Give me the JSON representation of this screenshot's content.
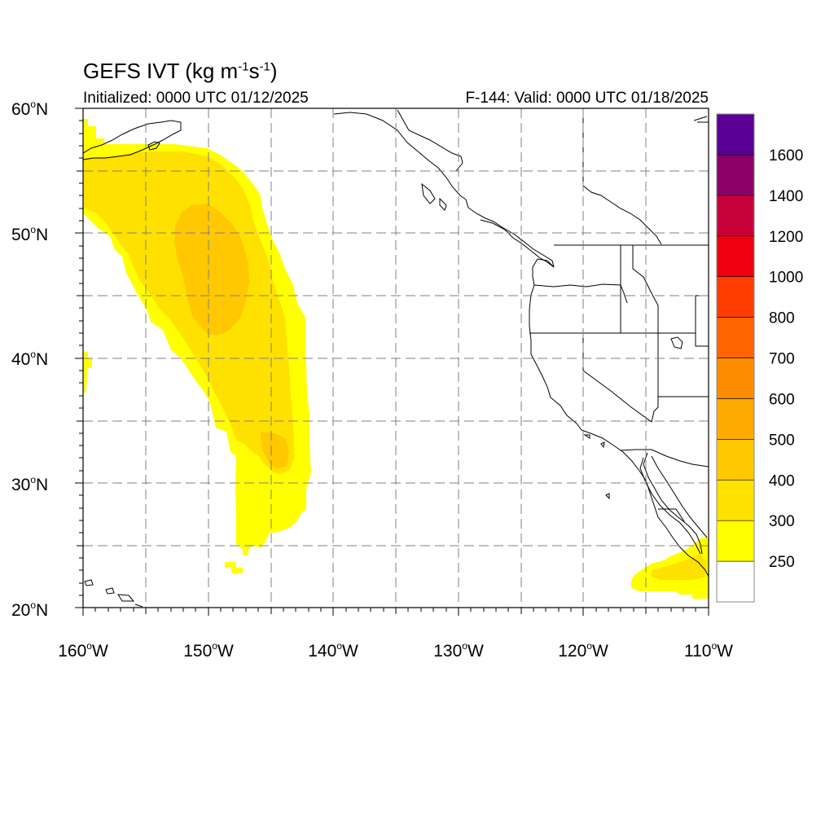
{
  "header": {
    "title_prefix": "GEFS IVT (kg m",
    "title_exp1": "-1",
    "title_mid": "s",
    "title_exp2": "-1",
    "title_suffix": ")",
    "initialized": "Initialized: 0000 UTC 01/12/2025",
    "valid": "F-144: Valid: 0000 UTC 01/18/2025"
  },
  "map": {
    "lon_range": [
      -160,
      -110
    ],
    "lat_range": [
      20,
      60
    ],
    "lat_labels": [
      "60",
      "50",
      "40",
      "30",
      "20"
    ],
    "lat_suffix": "N",
    "lon_labels": [
      "160",
      "150",
      "140",
      "130",
      "120",
      "110"
    ],
    "lon_suffix": "W",
    "degree_symbol": "o"
  },
  "colorbar": {
    "labels": [
      "250",
      "300",
      "400",
      "500",
      "600",
      "700",
      "800",
      "1000",
      "1200",
      "1400",
      "1600"
    ],
    "colors": [
      "#ffffff",
      "#ffff00",
      "#ffe100",
      "#ffc800",
      "#ffaa00",
      "#ff8c00",
      "#ff6400",
      "#ff3c00",
      "#ee0011",
      "#c8003a",
      "#8b0066",
      "#5a0096"
    ]
  },
  "colors": {
    "ivt_250": "#ffff00",
    "ivt_300": "#ffe100",
    "ivt_400": "#ffc800",
    "coastline": "#000000",
    "gridline": "#808080"
  }
}
